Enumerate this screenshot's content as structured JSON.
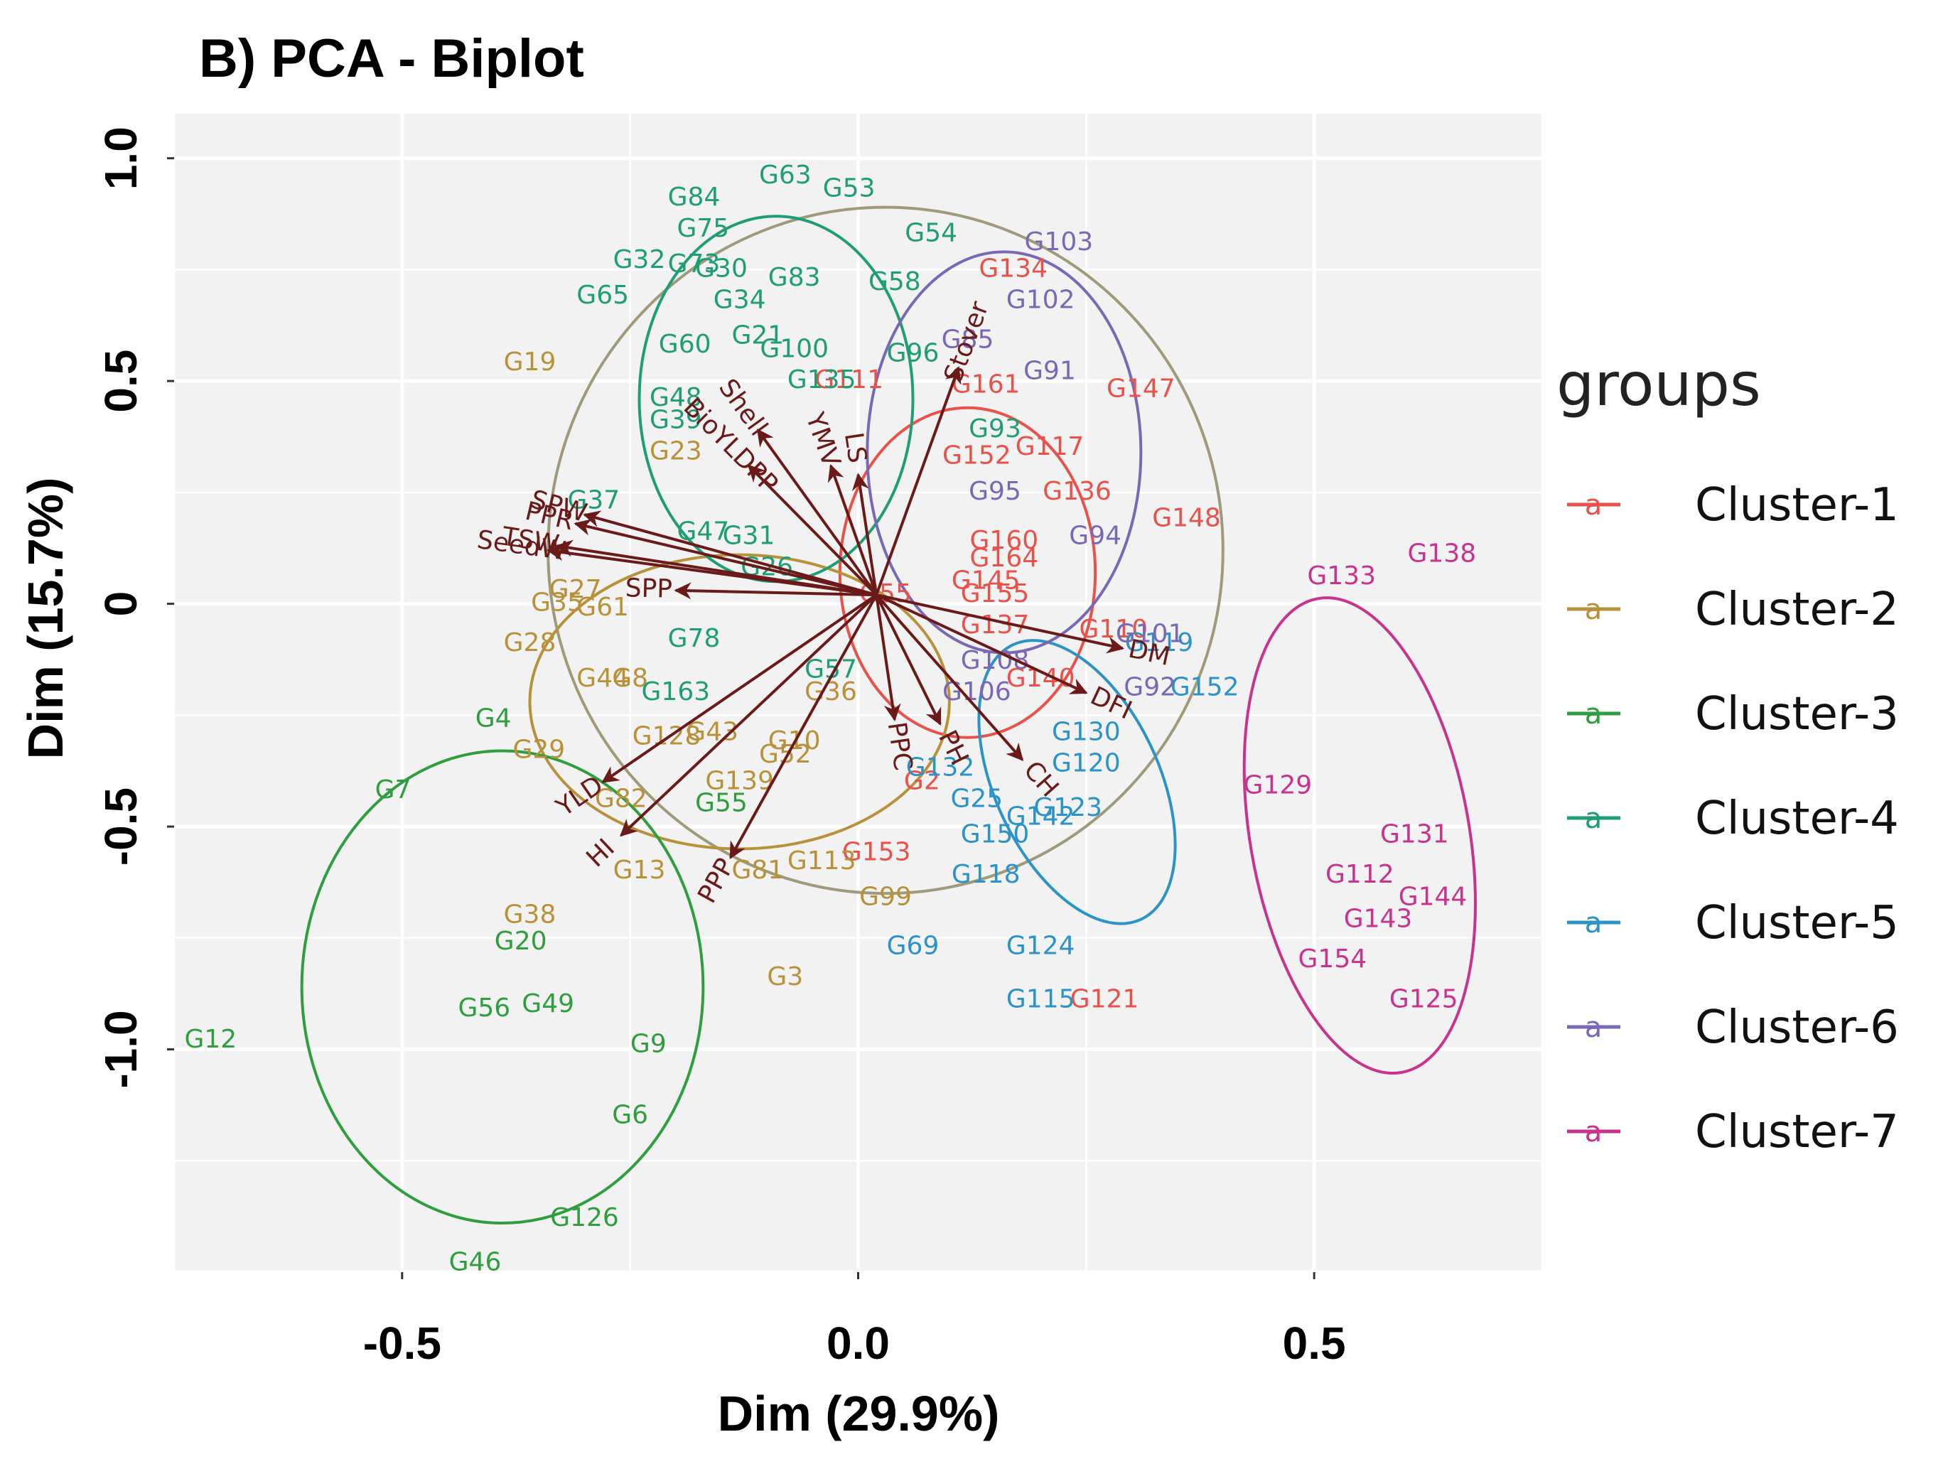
{
  "chart_data": {
    "type": "scatter",
    "subtype": "pca-biplot",
    "title": "B)  PCA - Biplot",
    "xlabel": "Dim (29.9%)",
    "ylabel": "Dim (15.7%)",
    "xlim": [
      -0.75,
      0.75
    ],
    "ylim": [
      -1.5,
      1.1
    ],
    "x_ticks": [
      {
        "value": -0.5,
        "label": "-0.5"
      },
      {
        "value": 0.0,
        "label": "0.0"
      },
      {
        "value": 0.5,
        "label": "0.5"
      }
    ],
    "y_ticks": [
      {
        "value": -1.0,
        "label": "-1.0"
      },
      {
        "value": -0.5,
        "label": "-0.5"
      },
      {
        "value": 0.0,
        "label": "0"
      },
      {
        "value": 0.5,
        "label": "0.5"
      },
      {
        "value": 1.0,
        "label": "1.0"
      }
    ],
    "grid": true,
    "legend": {
      "title": "groups",
      "position": "right",
      "key_glyph": "a"
    },
    "arrow_origin": [
      0.02,
      0.02
    ],
    "series": [
      {
        "name": "Cluster-1",
        "color": "#E8524A",
        "ellipse": {
          "cx": 0.12,
          "cy": 0.07,
          "rx": 0.14,
          "ry": 0.37,
          "angle": 0
        },
        "points": [
          {
            "label": "G134",
            "x": 0.17,
            "y": 0.75
          },
          {
            "label": "G161",
            "x": 0.14,
            "y": 0.49
          },
          {
            "label": "G111",
            "x": -0.01,
            "y": 0.5
          },
          {
            "label": "G117",
            "x": 0.21,
            "y": 0.35
          },
          {
            "label": "G152",
            "x": 0.13,
            "y": 0.33
          },
          {
            "label": "G136",
            "x": 0.24,
            "y": 0.25
          },
          {
            "label": "G160",
            "x": 0.16,
            "y": 0.14
          },
          {
            "label": "G164",
            "x": 0.16,
            "y": 0.1
          },
          {
            "label": "G145",
            "x": 0.14,
            "y": 0.05
          },
          {
            "label": "G155",
            "x": 0.15,
            "y": 0.02
          },
          {
            "label": "G55",
            "x": 0.03,
            "y": 0.02
          },
          {
            "label": "G137",
            "x": 0.15,
            "y": -0.05
          },
          {
            "label": "G110",
            "x": 0.28,
            "y": -0.06
          },
          {
            "label": "G140",
            "x": 0.2,
            "y": -0.17
          },
          {
            "label": "G2",
            "x": 0.07,
            "y": -0.4
          },
          {
            "label": "G153",
            "x": 0.02,
            "y": -0.56
          },
          {
            "label": "G147",
            "x": 0.31,
            "y": 0.48
          },
          {
            "label": "G148",
            "x": 0.36,
            "y": 0.19
          },
          {
            "label": "G121",
            "x": 0.27,
            "y": -0.89
          }
        ]
      },
      {
        "name": "Cluster-2",
        "color": "#B8923A",
        "ellipse": {
          "cx": -0.13,
          "cy": -0.22,
          "rx": 0.23,
          "ry": 0.33,
          "angle": 0
        },
        "points": [
          {
            "label": "G19",
            "x": -0.36,
            "y": 0.54
          },
          {
            "label": "G23",
            "x": -0.2,
            "y": 0.34
          },
          {
            "label": "G27",
            "x": -0.31,
            "y": 0.03
          },
          {
            "label": "G35",
            "x": -0.33,
            "y": 0
          },
          {
            "label": "G61",
            "x": -0.28,
            "y": -0.01
          },
          {
            "label": "G28",
            "x": -0.36,
            "y": -0.09
          },
          {
            "label": "G44",
            "x": -0.28,
            "y": -0.17
          },
          {
            "label": "G8",
            "x": -0.25,
            "y": -0.17
          },
          {
            "label": "G29",
            "x": -0.35,
            "y": -0.33
          },
          {
            "label": "G128",
            "x": -0.21,
            "y": -0.3
          },
          {
            "label": "G43",
            "x": -0.16,
            "y": -0.29
          },
          {
            "label": "G10",
            "x": -0.07,
            "y": -0.31
          },
          {
            "label": "G52",
            "x": -0.08,
            "y": -0.34
          },
          {
            "label": "G139",
            "x": -0.13,
            "y": -0.4
          },
          {
            "label": "G82",
            "x": -0.26,
            "y": -0.44
          },
          {
            "label": "G13",
            "x": -0.24,
            "y": -0.6
          },
          {
            "label": "G81",
            "x": -0.11,
            "y": -0.6
          },
          {
            "label": "G113",
            "x": -0.04,
            "y": -0.58
          },
          {
            "label": "G99",
            "x": 0.03,
            "y": -0.66
          },
          {
            "label": "G38",
            "x": -0.36,
            "y": -0.7
          },
          {
            "label": "G3",
            "x": -0.08,
            "y": -0.84
          },
          {
            "label": "G36",
            "x": -0.03,
            "y": -0.2
          }
        ]
      },
      {
        "name": "Cluster-3",
        "color": "#2E9E3E",
        "ellipse": {
          "cx": -0.39,
          "cy": -0.86,
          "rx": 0.22,
          "ry": 0.53,
          "angle": 0
        },
        "points": [
          {
            "label": "G4",
            "x": -0.4,
            "y": -0.26
          },
          {
            "label": "G7",
            "x": -0.51,
            "y": -0.42
          },
          {
            "label": "G20",
            "x": -0.37,
            "y": -0.76
          },
          {
            "label": "G56",
            "x": -0.41,
            "y": -0.91
          },
          {
            "label": "G49",
            "x": -0.34,
            "y": -0.9
          },
          {
            "label": "G12",
            "x": -0.71,
            "y": -0.98
          },
          {
            "label": "G9",
            "x": -0.23,
            "y": -0.99
          },
          {
            "label": "G6",
            "x": -0.25,
            "y": -1.15
          },
          {
            "label": "G126",
            "x": -0.3,
            "y": -1.38
          },
          {
            "label": "G46",
            "x": -0.42,
            "y": -1.48
          },
          {
            "label": "G55",
            "x": -0.15,
            "y": -0.45
          }
        ]
      },
      {
        "name": "Cluster-4",
        "color": "#1F9E74",
        "ellipse": {
          "cx": -0.09,
          "cy": 0.46,
          "rx": 0.15,
          "ry": 0.41,
          "angle": 0
        },
        "points": [
          {
            "label": "G63",
            "x": -0.08,
            "y": 0.96
          },
          {
            "label": "G53",
            "x": -0.01,
            "y": 0.93
          },
          {
            "label": "G84",
            "x": -0.18,
            "y": 0.91
          },
          {
            "label": "G75",
            "x": -0.17,
            "y": 0.84
          },
          {
            "label": "G54",
            "x": 0.08,
            "y": 0.83
          },
          {
            "label": "G32",
            "x": -0.24,
            "y": 0.77
          },
          {
            "label": "G73",
            "x": -0.18,
            "y": 0.76
          },
          {
            "label": "G30",
            "x": -0.15,
            "y": 0.75
          },
          {
            "label": "G83",
            "x": -0.07,
            "y": 0.73
          },
          {
            "label": "G58",
            "x": 0.04,
            "y": 0.72
          },
          {
            "label": "G65",
            "x": -0.28,
            "y": 0.69
          },
          {
            "label": "G34",
            "x": -0.13,
            "y": 0.68
          },
          {
            "label": "G21",
            "x": -0.11,
            "y": 0.6
          },
          {
            "label": "G100",
            "x": -0.07,
            "y": 0.57
          },
          {
            "label": "G96",
            "x": 0.06,
            "y": 0.56
          },
          {
            "label": "G48",
            "x": -0.2,
            "y": 0.46
          },
          {
            "label": "G39",
            "x": -0.2,
            "y": 0.41
          },
          {
            "label": "G135",
            "x": -0.04,
            "y": 0.5
          },
          {
            "label": "G93",
            "x": 0.15,
            "y": 0.39
          },
          {
            "label": "G37",
            "x": -0.29,
            "y": 0.23
          },
          {
            "label": "G47",
            "x": -0.17,
            "y": 0.16
          },
          {
            "label": "G31",
            "x": -0.12,
            "y": 0.15
          },
          {
            "label": "G26",
            "x": -0.1,
            "y": 0.08
          },
          {
            "label": "G78",
            "x": -0.18,
            "y": -0.08
          },
          {
            "label": "G163",
            "x": -0.2,
            "y": -0.2
          },
          {
            "label": "G57",
            "x": -0.03,
            "y": -0.15
          },
          {
            "label": "G60",
            "x": -0.19,
            "y": 0.58
          }
        ]
      },
      {
        "name": "Cluster-5",
        "color": "#2B93C8",
        "ellipse": {
          "cx": 0.24,
          "cy": -0.4,
          "rx": 0.09,
          "ry": 0.34,
          "angle": 25
        },
        "points": [
          {
            "label": "G119",
            "x": 0.33,
            "y": -0.09
          },
          {
            "label": "G152",
            "x": 0.38,
            "y": -0.19
          },
          {
            "label": "G130",
            "x": 0.25,
            "y": -0.29
          },
          {
            "label": "G120",
            "x": 0.25,
            "y": -0.36
          },
          {
            "label": "G123",
            "x": 0.23,
            "y": -0.46
          },
          {
            "label": "G142",
            "x": 0.2,
            "y": -0.48
          },
          {
            "label": "G150",
            "x": 0.15,
            "y": -0.52
          },
          {
            "label": "G118",
            "x": 0.14,
            "y": -0.61
          },
          {
            "label": "G69",
            "x": 0.06,
            "y": -0.77
          },
          {
            "label": "G124",
            "x": 0.2,
            "y": -0.77
          },
          {
            "label": "G115",
            "x": 0.2,
            "y": -0.89
          },
          {
            "label": "G132",
            "x": 0.09,
            "y": -0.37
          },
          {
            "label": "G25",
            "x": 0.13,
            "y": -0.44
          }
        ]
      },
      {
        "name": "Cluster-6",
        "color": "#7A68B5",
        "ellipse": {
          "cx": 0.16,
          "cy": 0.34,
          "rx": 0.15,
          "ry": 0.45,
          "angle": 0
        },
        "points": [
          {
            "label": "G103",
            "x": 0.22,
            "y": 0.81
          },
          {
            "label": "G102",
            "x": 0.2,
            "y": 0.68
          },
          {
            "label": "G85",
            "x": 0.12,
            "y": 0.59
          },
          {
            "label": "G91",
            "x": 0.21,
            "y": 0.52
          },
          {
            "label": "G95",
            "x": 0.15,
            "y": 0.25
          },
          {
            "label": "G94",
            "x": 0.26,
            "y": 0.15
          },
          {
            "label": "G101",
            "x": 0.32,
            "y": -0.07
          },
          {
            "label": "G92",
            "x": 0.32,
            "y": -0.19
          },
          {
            "label": "G108",
            "x": 0.15,
            "y": -0.13
          },
          {
            "label": "G106",
            "x": 0.13,
            "y": -0.2
          }
        ]
      },
      {
        "name": "Cluster-7",
        "color": "#C8338C",
        "ellipse": {
          "cx": 0.55,
          "cy": -0.52,
          "rx": 0.12,
          "ry": 0.54,
          "angle": 10
        },
        "points": [
          {
            "label": "G138",
            "x": 0.64,
            "y": 0.11
          },
          {
            "label": "G133",
            "x": 0.53,
            "y": 0.06
          },
          {
            "label": "G129",
            "x": 0.46,
            "y": -0.41
          },
          {
            "label": "G131",
            "x": 0.61,
            "y": -0.52
          },
          {
            "label": "G112",
            "x": 0.55,
            "y": -0.61
          },
          {
            "label": "G144",
            "x": 0.63,
            "y": -0.66
          },
          {
            "label": "G143",
            "x": 0.57,
            "y": -0.71
          },
          {
            "label": "G154",
            "x": 0.52,
            "y": -0.8
          },
          {
            "label": "G125",
            "x": 0.62,
            "y": -0.89
          }
        ]
      }
    ],
    "big_ellipse": {
      "color": "#9E9A7A",
      "cx": 0.03,
      "cy": 0.12,
      "rx": 0.37,
      "ry": 0.77,
      "angle": 0
    },
    "variables": [
      {
        "name": "Stover",
        "x": 0.11,
        "y": 0.53
      },
      {
        "name": "BioYLDPP",
        "x": -0.12,
        "y": 0.31
      },
      {
        "name": "Shell",
        "x": -0.11,
        "y": 0.39
      },
      {
        "name": "YMV",
        "x": -0.03,
        "y": 0.31
      },
      {
        "name": "LS",
        "x": 0.0,
        "y": 0.29
      },
      {
        "name": "SPW",
        "x": -0.3,
        "y": 0.2
      },
      {
        "name": "PPR",
        "x": -0.31,
        "y": 0.18
      },
      {
        "name": "TSW",
        "x": -0.33,
        "y": 0.13
      },
      {
        "name": "SeedW",
        "x": -0.34,
        "y": 0.12
      },
      {
        "name": "SPP",
        "x": -0.2,
        "y": 0.03
      },
      {
        "name": "DM",
        "x": 0.29,
        "y": -0.1
      },
      {
        "name": "DFI",
        "x": 0.25,
        "y": -0.2
      },
      {
        "name": "PH",
        "x": 0.09,
        "y": -0.27
      },
      {
        "name": "CH",
        "x": 0.18,
        "y": -0.35
      },
      {
        "name": "PPC",
        "x": 0.04,
        "y": -0.26
      },
      {
        "name": "YLD",
        "x": -0.28,
        "y": -0.4
      },
      {
        "name": "HI",
        "x": -0.26,
        "y": -0.52
      },
      {
        "name": "PPP",
        "x": -0.14,
        "y": -0.57
      }
    ]
  }
}
